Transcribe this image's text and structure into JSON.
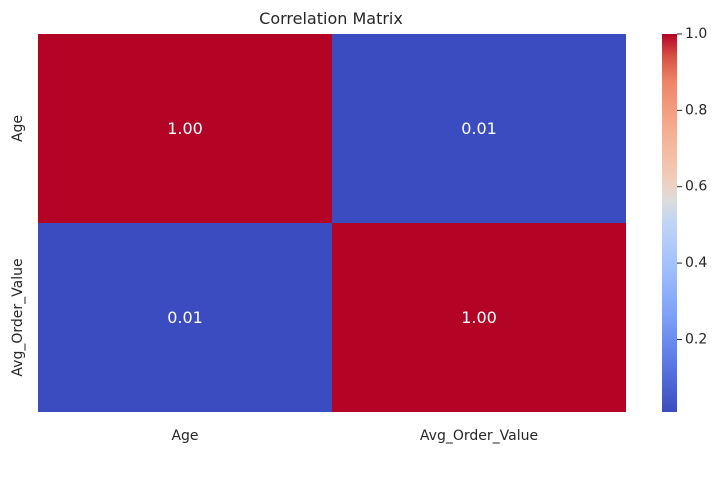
{
  "chart_data": {
    "type": "heatmap",
    "title": "Correlation Matrix",
    "xlabel": "",
    "ylabel": "",
    "x_categories": [
      "Age",
      "Avg_Order_Value"
    ],
    "y_categories": [
      "Age",
      "Avg_Order_Value"
    ],
    "values": [
      [
        1.0,
        0.01
      ],
      [
        0.01,
        1.0
      ]
    ],
    "annotations": [
      [
        "1.00",
        "0.01"
      ],
      [
        "0.01",
        "1.00"
      ]
    ],
    "colormap": "coolwarm",
    "colors": {
      "low": "#3b4cc0",
      "mid": "#dddddd",
      "high": "#b40426"
    },
    "colorbar": {
      "range": [
        0.01,
        1.0
      ],
      "ticks": [
        0.2,
        0.4,
        0.6,
        0.8,
        1.0
      ],
      "tick_labels": [
        "0.2",
        "0.4",
        "0.6",
        "0.8",
        "1.0"
      ],
      "placement": "right"
    },
    "grid": false
  }
}
